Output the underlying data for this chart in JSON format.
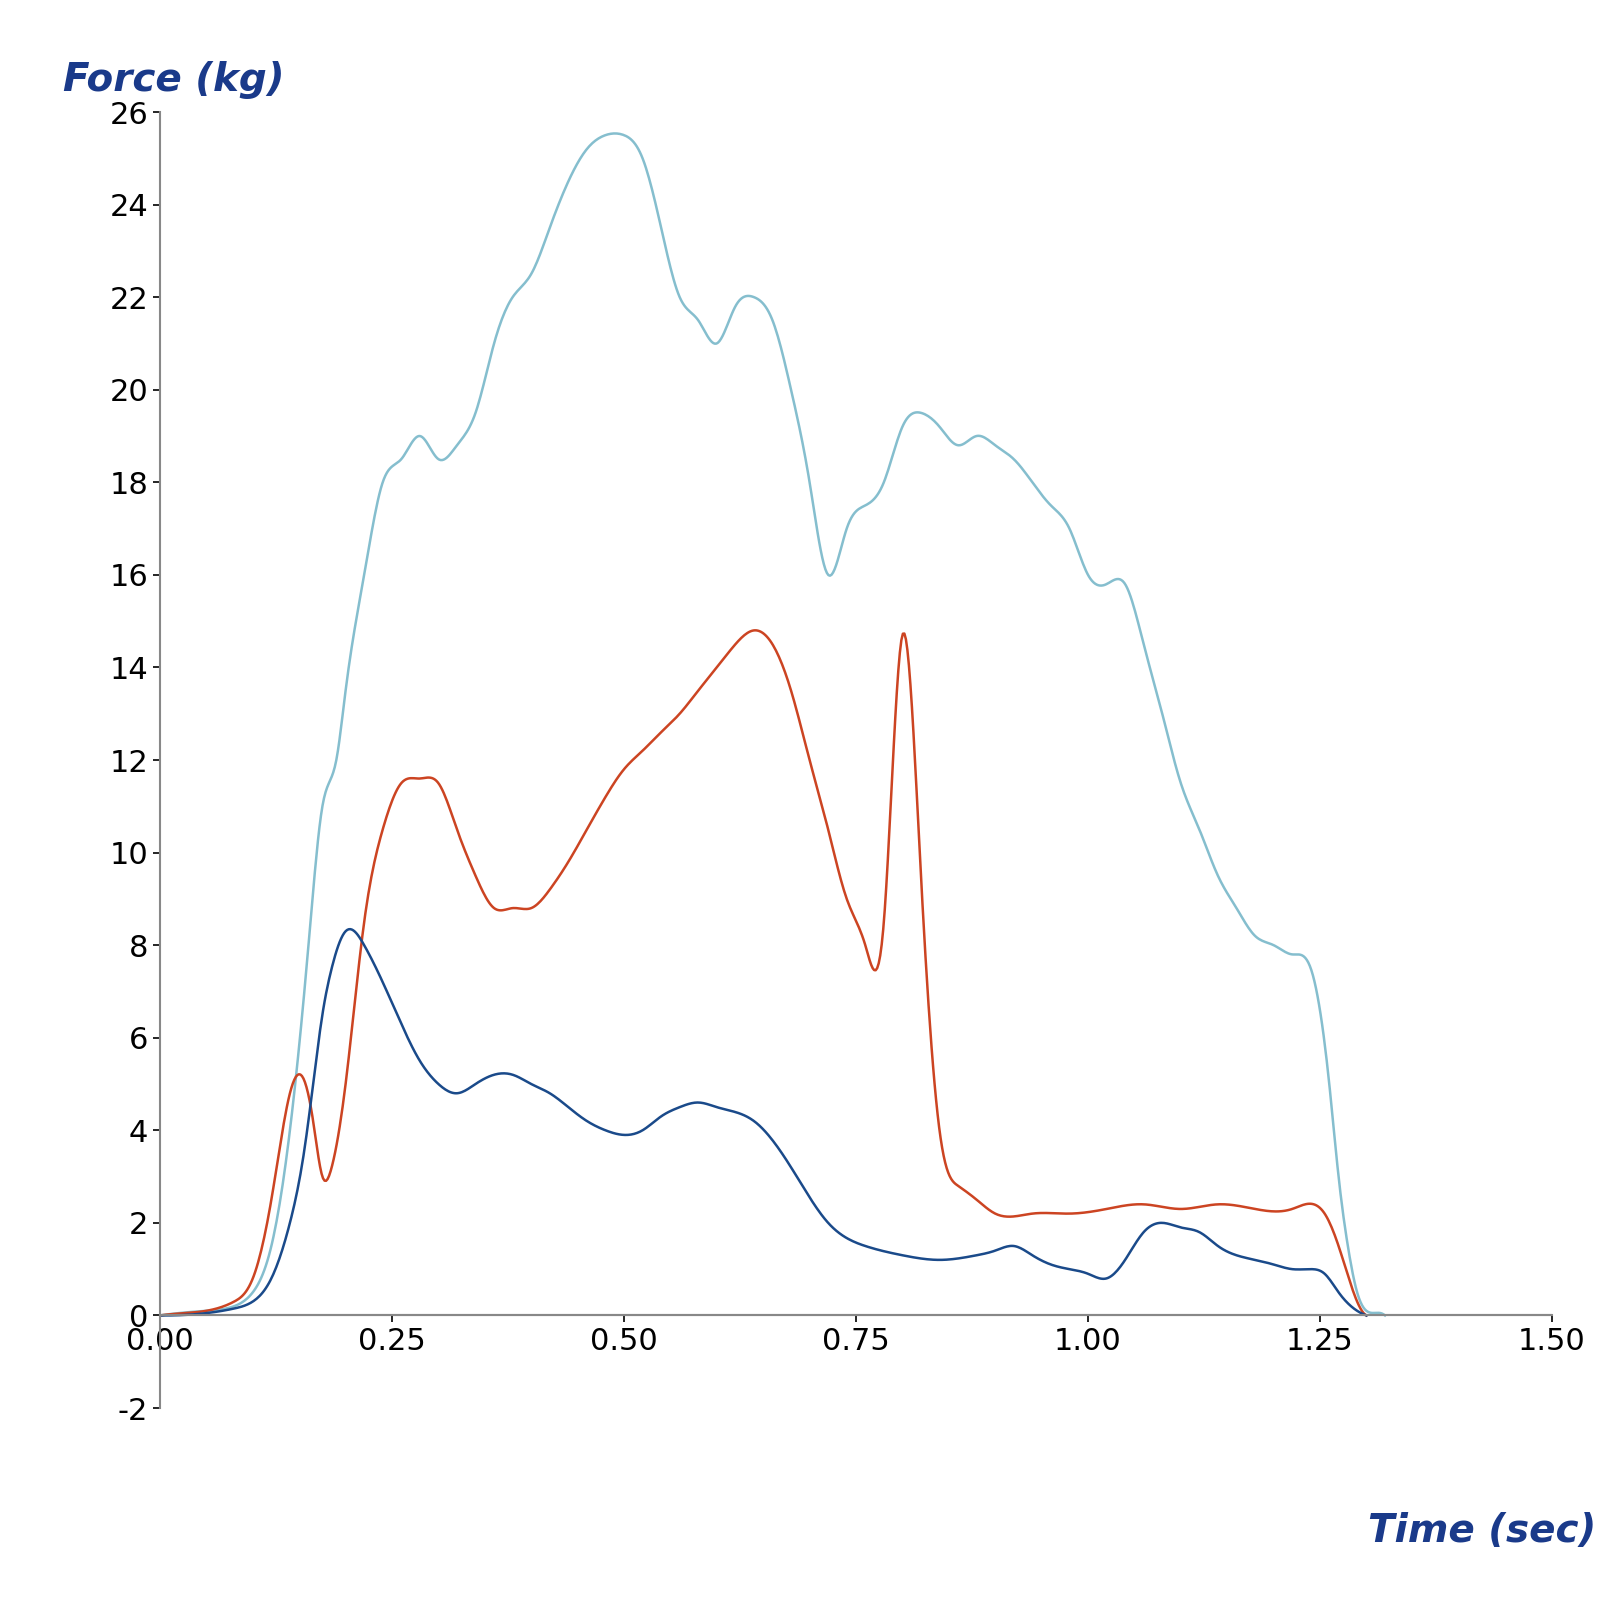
{
  "title_y": "Force (kg)",
  "title_x": "Time (sec)",
  "title_color": "#1a3a8a",
  "axis_color": "#888888",
  "ylim": [
    -2,
    26
  ],
  "xlim": [
    0.0,
    1.5
  ],
  "yticks": [
    -2,
    0,
    2,
    4,
    6,
    8,
    10,
    12,
    14,
    16,
    18,
    20,
    22,
    24,
    26
  ],
  "xticks": [
    0.0,
    0.25,
    0.5,
    0.75,
    1.0,
    1.25,
    1.5
  ],
  "line_light_blue_color": "#85bece",
  "line_red_color": "#cc4422",
  "line_dark_blue_color": "#1a4a8a",
  "line_width": 1.8,
  "background_color": "#ffffff",
  "light_blue_x": [
    0.0,
    0.02,
    0.05,
    0.08,
    0.1,
    0.12,
    0.14,
    0.16,
    0.175,
    0.19,
    0.2,
    0.22,
    0.24,
    0.26,
    0.28,
    0.3,
    0.32,
    0.34,
    0.36,
    0.38,
    0.4,
    0.42,
    0.44,
    0.46,
    0.48,
    0.5,
    0.52,
    0.54,
    0.56,
    0.58,
    0.6,
    0.62,
    0.64,
    0.66,
    0.68,
    0.7,
    0.72,
    0.74,
    0.76,
    0.78,
    0.8,
    0.82,
    0.84,
    0.86,
    0.88,
    0.9,
    0.92,
    0.94,
    0.96,
    0.98,
    1.0,
    1.02,
    1.04,
    1.06,
    1.08,
    1.1,
    1.12,
    1.14,
    1.16,
    1.18,
    1.2,
    1.22,
    1.24,
    1.26,
    1.27,
    1.28,
    1.29,
    1.3,
    1.32
  ],
  "light_blue_y": [
    0.0,
    0.05,
    0.1,
    0.2,
    0.5,
    1.5,
    4.0,
    8.0,
    11.0,
    12.0,
    13.5,
    16.0,
    18.0,
    18.5,
    19.0,
    18.5,
    18.8,
    19.5,
    21.0,
    22.0,
    22.5,
    23.5,
    24.5,
    25.2,
    25.5,
    25.5,
    25.0,
    23.5,
    22.0,
    21.5,
    21.0,
    21.8,
    22.0,
    21.5,
    20.0,
    18.0,
    16.0,
    17.0,
    17.5,
    18.0,
    19.2,
    19.5,
    19.2,
    18.8,
    19.0,
    18.8,
    18.5,
    18.0,
    17.5,
    17.0,
    16.0,
    15.8,
    15.8,
    14.5,
    13.0,
    11.5,
    10.5,
    9.5,
    8.8,
    8.2,
    8.0,
    7.8,
    7.5,
    5.0,
    3.0,
    1.5,
    0.5,
    0.1,
    0.0
  ],
  "red_x": [
    0.0,
    0.05,
    0.08,
    0.1,
    0.12,
    0.14,
    0.155,
    0.165,
    0.175,
    0.185,
    0.2,
    0.22,
    0.24,
    0.26,
    0.28,
    0.3,
    0.32,
    0.34,
    0.36,
    0.38,
    0.4,
    0.42,
    0.44,
    0.46,
    0.48,
    0.5,
    0.52,
    0.54,
    0.56,
    0.58,
    0.6,
    0.62,
    0.64,
    0.66,
    0.68,
    0.7,
    0.72,
    0.74,
    0.76,
    0.78,
    0.8,
    0.82,
    0.84,
    0.86,
    0.88,
    0.9,
    0.94,
    0.98,
    1.02,
    1.06,
    1.1,
    1.14,
    1.18,
    1.22,
    1.255,
    1.27,
    1.29,
    1.3
  ],
  "red_y": [
    0.0,
    0.1,
    0.3,
    0.8,
    2.5,
    4.8,
    5.1,
    4.2,
    3.0,
    3.2,
    5.0,
    8.5,
    10.5,
    11.5,
    11.6,
    11.5,
    10.5,
    9.5,
    8.8,
    8.8,
    8.8,
    9.2,
    9.8,
    10.5,
    11.2,
    11.8,
    12.2,
    12.6,
    13.0,
    13.5,
    14.0,
    14.5,
    14.8,
    14.5,
    13.5,
    12.0,
    10.5,
    9.0,
    8.0,
    8.5,
    14.7,
    9.5,
    4.0,
    2.8,
    2.5,
    2.2,
    2.2,
    2.2,
    2.3,
    2.4,
    2.3,
    2.4,
    2.3,
    2.3,
    2.2,
    1.5,
    0.3,
    0.0
  ],
  "dark_blue_x": [
    0.0,
    0.05,
    0.08,
    0.1,
    0.12,
    0.14,
    0.155,
    0.165,
    0.175,
    0.185,
    0.2,
    0.22,
    0.24,
    0.26,
    0.28,
    0.3,
    0.32,
    0.34,
    0.36,
    0.38,
    0.4,
    0.42,
    0.44,
    0.46,
    0.48,
    0.5,
    0.52,
    0.54,
    0.56,
    0.58,
    0.6,
    0.64,
    0.68,
    0.72,
    0.76,
    0.8,
    0.84,
    0.88,
    0.9,
    0.92,
    0.94,
    0.96,
    0.98,
    1.0,
    1.02,
    1.04,
    1.06,
    1.08,
    1.1,
    1.12,
    1.14,
    1.16,
    1.18,
    1.2,
    1.22,
    1.24,
    1.255,
    1.27,
    1.29,
    1.3
  ],
  "dark_blue_y": [
    0.0,
    0.05,
    0.15,
    0.3,
    0.8,
    2.0,
    3.5,
    5.0,
    6.5,
    7.5,
    8.3,
    8.0,
    7.2,
    6.3,
    5.5,
    5.0,
    4.8,
    5.0,
    5.2,
    5.2,
    5.0,
    4.8,
    4.5,
    4.2,
    4.0,
    3.9,
    4.0,
    4.3,
    4.5,
    4.6,
    4.5,
    4.2,
    3.2,
    2.0,
    1.5,
    1.3,
    1.2,
    1.3,
    1.4,
    1.5,
    1.3,
    1.1,
    1.0,
    0.9,
    0.8,
    1.2,
    1.8,
    2.0,
    1.9,
    1.8,
    1.5,
    1.3,
    1.2,
    1.1,
    1.0,
    1.0,
    0.9,
    0.5,
    0.1,
    0.0
  ]
}
